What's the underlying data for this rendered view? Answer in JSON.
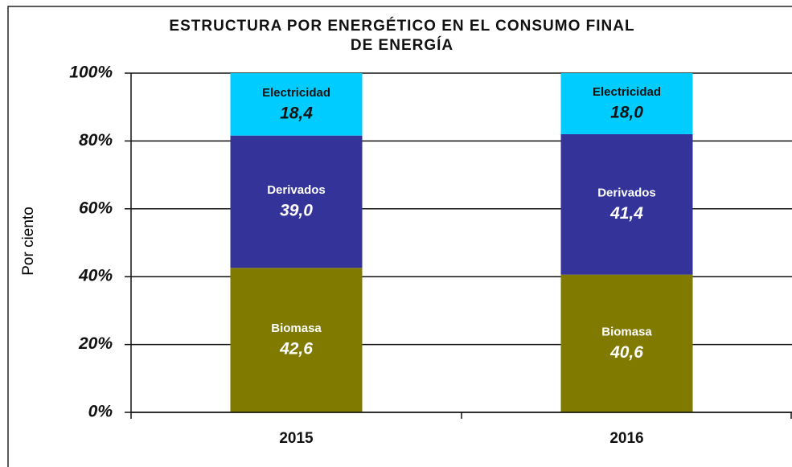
{
  "chart_data": {
    "type": "stacked_bar",
    "title": [
      "ESTRUCTURA POR ENERGÉTICO EN EL CONSUMO FINAL",
      "DE ENERGÍA"
    ],
    "y_label": "Por ciento",
    "categories": [
      "2015",
      "2016"
    ],
    "series": [
      {
        "name": "Biomasa",
        "color": "#807a00",
        "label_color": "#ffffff",
        "values": [
          42.6,
          40.6
        ],
        "value_labels": [
          "42,6",
          "40,6"
        ]
      },
      {
        "name": "Derivados",
        "color": "#333399",
        "label_color": "#ffffff",
        "values": [
          39.0,
          41.4
        ],
        "value_labels": [
          "39,0",
          "41,4"
        ]
      },
      {
        "name": "Electricidad",
        "color": "#00ccff",
        "label_color": "#111111",
        "values": [
          18.4,
          18.0
        ],
        "value_labels": [
          "18,4",
          "18,0"
        ]
      }
    ],
    "ylim": [
      0,
      100
    ],
    "yticks": [
      {
        "value": 0,
        "label": "0%"
      },
      {
        "value": 20,
        "label": "20%"
      },
      {
        "value": 40,
        "label": "40%"
      },
      {
        "value": 60,
        "label": "60%"
      },
      {
        "value": 80,
        "label": "80%"
      },
      {
        "value": 100,
        "label": "100%"
      }
    ],
    "grid": true
  }
}
